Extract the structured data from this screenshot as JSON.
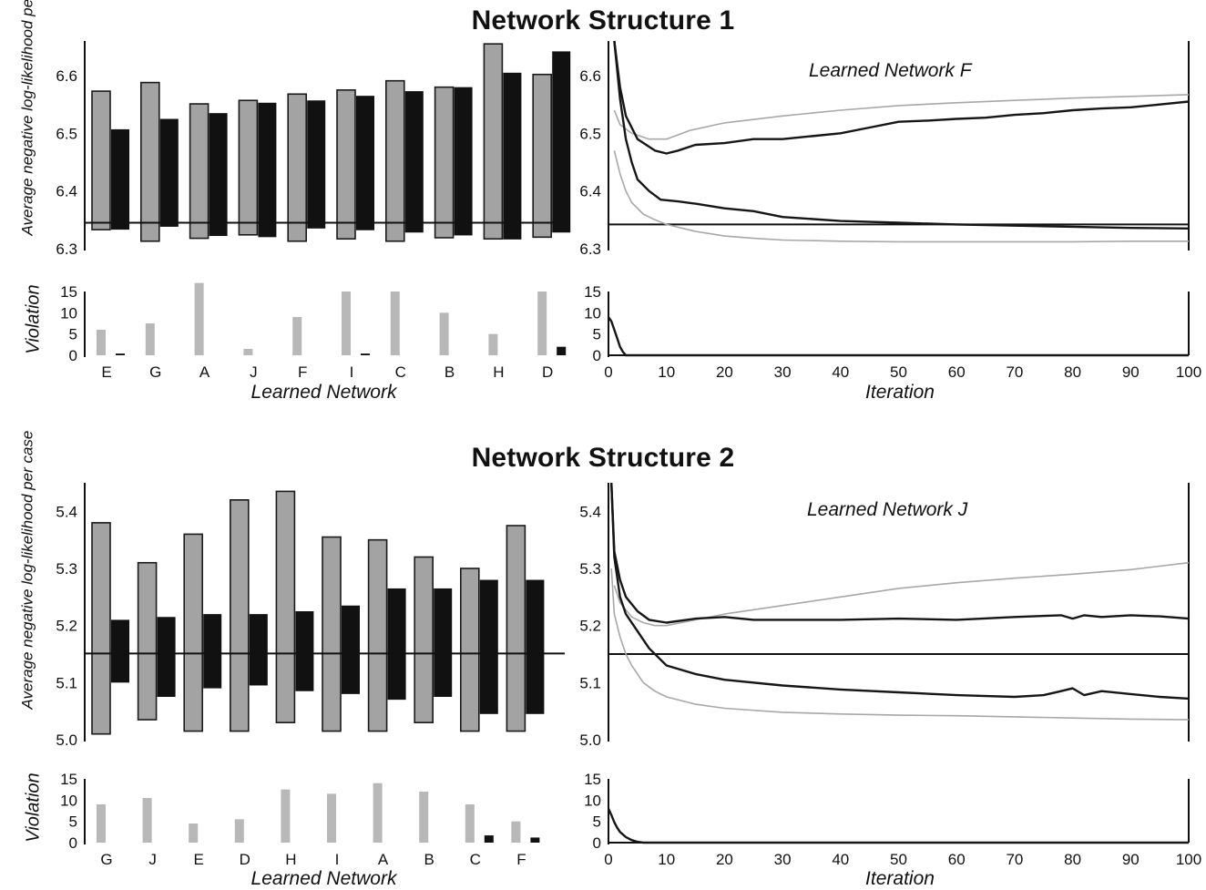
{
  "colors": {
    "gray_fill": "#a3a3a3",
    "gray_stroke": "#1a1a1a",
    "black": "#111111",
    "light_line": "#a8a8a8",
    "dark_line": "#161616",
    "violation_gray": "#b8b8b8"
  },
  "chart_data": [
    {
      "type": "bar",
      "panel": "structure1-bars",
      "title": "Network Structure 1",
      "ylabel": "Average negative log-likelihood per case",
      "xlabel": "Learned Network",
      "ylim": [
        6.3,
        6.66
      ],
      "yticks": [
        6.3,
        6.4,
        6.5,
        6.6
      ],
      "ytick_labels": [
        "6.3",
        "6.4",
        "6.5",
        "6.6"
      ],
      "reference_line": 6.345,
      "categories": [
        "E",
        "G",
        "A",
        "J",
        "F",
        "I",
        "C",
        "B",
        "H",
        "D"
      ],
      "series": [
        {
          "style": "gray-range",
          "low": [
            6.333,
            6.313,
            6.318,
            6.324,
            6.313,
            6.317,
            6.313,
            6.319,
            6.317,
            6.32
          ],
          "high": [
            6.573,
            6.588,
            6.551,
            6.557,
            6.568,
            6.575,
            6.591,
            6.58,
            6.655,
            6.602
          ]
        },
        {
          "style": "black-range",
          "low": [
            6.333,
            6.338,
            6.322,
            6.32,
            6.335,
            6.332,
            6.328,
            6.323,
            6.316,
            6.328
          ],
          "high": [
            6.507,
            6.525,
            6.535,
            6.553,
            6.557,
            6.565,
            6.573,
            6.58,
            6.605,
            6.642
          ]
        }
      ]
    },
    {
      "type": "line",
      "panel": "structure1-lines",
      "annotation": "Learned Network F",
      "xlabel": "Iteration",
      "ylim": [
        6.3,
        6.66
      ],
      "xlim": [
        0,
        100
      ],
      "yticks": [
        6.3,
        6.4,
        6.5,
        6.6
      ],
      "ytick_labels": [
        "6.3",
        "6.4",
        "6.5",
        "6.6"
      ],
      "reference_line": 6.342,
      "series": [
        {
          "style": "light-upper",
          "x": [
            1,
            2,
            4,
            7,
            10,
            14,
            20,
            30,
            40,
            50,
            60,
            70,
            80,
            90,
            100
          ],
          "y": [
            6.54,
            6.515,
            6.5,
            6.49,
            6.49,
            6.505,
            6.518,
            6.53,
            6.54,
            6.548,
            6.553,
            6.557,
            6.561,
            6.564,
            6.567
          ]
        },
        {
          "style": "dark-upper",
          "x": [
            1,
            2,
            3,
            5,
            8,
            10,
            12,
            15,
            20,
            25,
            30,
            35,
            40,
            45,
            50,
            55,
            60,
            65,
            70,
            75,
            80,
            85,
            90,
            95,
            100
          ],
          "y": [
            6.66,
            6.58,
            6.53,
            6.49,
            6.47,
            6.465,
            6.47,
            6.48,
            6.483,
            6.49,
            6.49,
            6.495,
            6.5,
            6.51,
            6.52,
            6.522,
            6.525,
            6.527,
            6.532,
            6.535,
            6.54,
            6.543,
            6.545,
            6.55,
            6.555
          ]
        },
        {
          "style": "dark-lower",
          "x": [
            1,
            2,
            3,
            4,
            5,
            7,
            9,
            12,
            15,
            20,
            25,
            30,
            40,
            50,
            60,
            70,
            80,
            90,
            100
          ],
          "y": [
            6.66,
            6.56,
            6.49,
            6.45,
            6.42,
            6.4,
            6.385,
            6.382,
            6.378,
            6.37,
            6.365,
            6.355,
            6.348,
            6.345,
            6.342,
            6.34,
            6.338,
            6.336,
            6.335
          ]
        },
        {
          "style": "light-lower",
          "x": [
            1,
            2,
            3,
            4,
            6,
            8,
            10,
            15,
            20,
            25,
            30,
            40,
            50,
            60,
            70,
            80,
            90,
            100
          ],
          "y": [
            6.47,
            6.43,
            6.4,
            6.38,
            6.36,
            6.35,
            6.342,
            6.33,
            6.322,
            6.318,
            6.315,
            6.313,
            6.312,
            6.312,
            6.312,
            6.312,
            6.313,
            6.313
          ]
        }
      ]
    },
    {
      "type": "bar",
      "panel": "structure1-violation",
      "ylabel": "Violation",
      "ylim": [
        0,
        15
      ],
      "yticks": [
        0,
        5,
        10,
        15
      ],
      "ytick_labels": [
        "0",
        "5",
        "10",
        "15"
      ],
      "categories": [
        "E",
        "G",
        "A",
        "J",
        "F",
        "I",
        "C",
        "B",
        "H",
        "D"
      ],
      "series": [
        {
          "style": "gray",
          "values": [
            6,
            7.5,
            17,
            1.5,
            9,
            15,
            15,
            10,
            5,
            15
          ]
        },
        {
          "style": "black",
          "values": [
            0.4,
            0,
            0,
            0,
            0,
            0.4,
            0,
            0,
            0,
            2
          ]
        }
      ]
    },
    {
      "type": "line",
      "panel": "structure1-violation-lines",
      "xlabel": "Iteration",
      "xlim": [
        0,
        100
      ],
      "ylim": [
        0,
        15
      ],
      "xticks": [
        0,
        10,
        20,
        30,
        40,
        50,
        60,
        70,
        80,
        90,
        100
      ],
      "xtick_labels": [
        "0",
        "10",
        "20",
        "30",
        "40",
        "50",
        "60",
        "70",
        "80",
        "90",
        "100"
      ],
      "yticks": [
        0,
        5,
        10,
        15
      ],
      "ytick_labels": [
        "0",
        "5",
        "10",
        "15"
      ],
      "series": [
        {
          "style": "dark",
          "x": [
            0,
            0.5,
            1,
            1.5,
            2,
            2.5,
            3,
            4,
            100
          ],
          "y": [
            9,
            8,
            6,
            4,
            2,
            0.8,
            0,
            0,
            0
          ]
        }
      ]
    },
    {
      "type": "bar",
      "panel": "structure2-bars",
      "title": "Network Structure 2",
      "ylabel": "Average negative log-likelihood per case",
      "xlabel": "Learned Network",
      "ylim": [
        5.0,
        5.45
      ],
      "yticks": [
        5.0,
        5.1,
        5.2,
        5.3,
        5.4
      ],
      "ytick_labels": [
        "5.0",
        "5.1",
        "5.2",
        "5.3",
        "5.4"
      ],
      "reference_line": 5.151,
      "categories": [
        "G",
        "J",
        "E",
        "D",
        "H",
        "I",
        "A",
        "B",
        "C",
        "F"
      ],
      "series": [
        {
          "style": "gray-range",
          "low": [
            5.01,
            5.035,
            5.015,
            5.015,
            5.03,
            5.015,
            5.015,
            5.03,
            5.015,
            5.015
          ],
          "high": [
            5.38,
            5.31,
            5.36,
            5.42,
            5.435,
            5.355,
            5.35,
            5.32,
            5.3,
            5.375
          ]
        },
        {
          "style": "black-range",
          "low": [
            5.1,
            5.075,
            5.09,
            5.095,
            5.085,
            5.08,
            5.07,
            5.075,
            5.045,
            5.045
          ],
          "high": [
            5.21,
            5.215,
            5.22,
            5.22,
            5.225,
            5.235,
            5.265,
            5.265,
            5.28,
            5.28
          ]
        }
      ]
    },
    {
      "type": "line",
      "panel": "structure2-lines",
      "annotation": "Learned Network J",
      "xlabel": "Iteration",
      "ylim": [
        5.0,
        5.45
      ],
      "xlim": [
        0,
        100
      ],
      "yticks": [
        5.0,
        5.1,
        5.2,
        5.3,
        5.4
      ],
      "ytick_labels": [
        "5.0",
        "5.1",
        "5.2",
        "5.3",
        "5.4"
      ],
      "reference_line": 5.15,
      "series": [
        {
          "style": "light-upper",
          "x": [
            1,
            2,
            4,
            6,
            8,
            10,
            15,
            20,
            30,
            40,
            50,
            60,
            70,
            80,
            90,
            100
          ],
          "y": [
            5.27,
            5.24,
            5.215,
            5.205,
            5.2,
            5.2,
            5.21,
            5.22,
            5.235,
            5.25,
            5.265,
            5.275,
            5.283,
            5.29,
            5.298,
            5.31
          ]
        },
        {
          "style": "dark-upper",
          "x": [
            0.5,
            1,
            2,
            3,
            5,
            7,
            10,
            15,
            20,
            25,
            30,
            40,
            50,
            60,
            70,
            78,
            80,
            82,
            85,
            90,
            95,
            100
          ],
          "y": [
            5.45,
            5.33,
            5.28,
            5.25,
            5.225,
            5.21,
            5.205,
            5.212,
            5.215,
            5.21,
            5.21,
            5.21,
            5.212,
            5.21,
            5.215,
            5.218,
            5.212,
            5.218,
            5.215,
            5.218,
            5.216,
            5.212
          ]
        },
        {
          "style": "dark-lower",
          "x": [
            0.5,
            1,
            2,
            3,
            5,
            7,
            10,
            15,
            20,
            30,
            40,
            50,
            60,
            70,
            75,
            78,
            80,
            82,
            85,
            90,
            95,
            100
          ],
          "y": [
            5.45,
            5.32,
            5.25,
            5.22,
            5.19,
            5.16,
            5.13,
            5.115,
            5.105,
            5.095,
            5.088,
            5.083,
            5.078,
            5.075,
            5.078,
            5.085,
            5.09,
            5.078,
            5.085,
            5.08,
            5.075,
            5.072
          ]
        },
        {
          "style": "light-lower",
          "x": [
            0.5,
            1,
            2,
            3,
            4,
            6,
            8,
            10,
            15,
            20,
            30,
            40,
            50,
            60,
            70,
            80,
            90,
            100
          ],
          "y": [
            5.3,
            5.22,
            5.18,
            5.15,
            5.13,
            5.1,
            5.085,
            5.075,
            5.062,
            5.055,
            5.048,
            5.045,
            5.043,
            5.042,
            5.04,
            5.038,
            5.036,
            5.035
          ]
        }
      ]
    },
    {
      "type": "bar",
      "panel": "structure2-violation",
      "ylabel": "Violation",
      "ylim": [
        0,
        15
      ],
      "yticks": [
        0,
        5,
        10,
        15
      ],
      "ytick_labels": [
        "0",
        "5",
        "10",
        "15"
      ],
      "categories": [
        "G",
        "J",
        "E",
        "D",
        "H",
        "I",
        "A",
        "B",
        "C",
        "F"
      ],
      "series": [
        {
          "style": "gray",
          "values": [
            9,
            10.5,
            4.5,
            5.5,
            12.5,
            11.5,
            14,
            12,
            9,
            5
          ]
        },
        {
          "style": "black",
          "values": [
            0,
            0,
            0,
            0,
            0,
            0,
            0,
            0,
            1.7,
            1.2
          ]
        }
      ]
    },
    {
      "type": "line",
      "panel": "structure2-violation-lines",
      "xlabel": "Iteration",
      "xlim": [
        0,
        100
      ],
      "ylim": [
        0,
        15
      ],
      "xticks": [
        0,
        10,
        20,
        30,
        40,
        50,
        60,
        70,
        80,
        90,
        100
      ],
      "xtick_labels": [
        "0",
        "10",
        "20",
        "30",
        "40",
        "50",
        "60",
        "70",
        "80",
        "90",
        "100"
      ],
      "yticks": [
        0,
        5,
        10,
        15
      ],
      "ytick_labels": [
        "0",
        "5",
        "10",
        "15"
      ],
      "series": [
        {
          "style": "dark",
          "x": [
            0,
            0.5,
            1,
            1.5,
            2,
            3,
            4,
            5,
            6,
            100
          ],
          "y": [
            8,
            6.5,
            4.8,
            3.5,
            2.5,
            1.3,
            0.6,
            0.2,
            0,
            0
          ]
        }
      ]
    }
  ]
}
